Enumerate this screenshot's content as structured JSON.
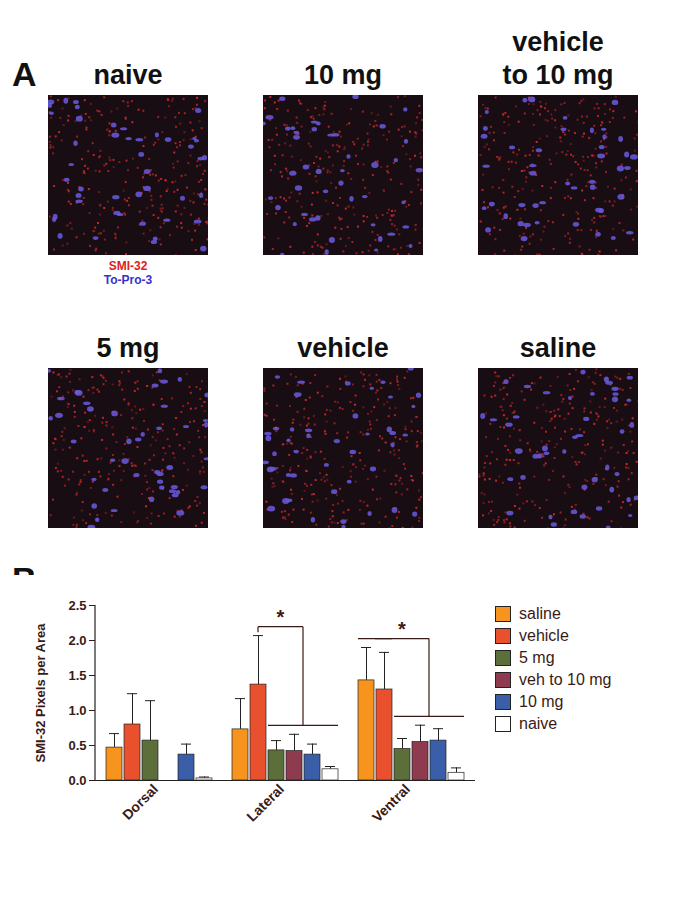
{
  "panel_labels": [
    "A",
    "B"
  ],
  "images": {
    "titles": [
      "naive",
      "10 mg",
      "vehicle to 10 mg",
      "5 mg",
      "vehicle",
      "saline"
    ],
    "stain_labels": [
      {
        "text": "SMI-32",
        "color": "#e02020"
      },
      {
        "text": "To-Pro-3",
        "color": "#3333cc"
      }
    ]
  },
  "chart_data": {
    "type": "bar",
    "y_label": "SMI-32 Pixels per Area",
    "categories": [
      "Dorsal",
      "Lateral",
      "Ventral"
    ],
    "series": [
      {
        "name": "saline",
        "color": "#f7941d",
        "values": [
          0.47,
          0.73,
          1.43
        ],
        "errors": [
          0.2,
          0.44,
          0.47
        ]
      },
      {
        "name": "vehicle",
        "color": "#e8502e",
        "values": [
          0.8,
          1.37,
          1.3
        ],
        "errors": [
          0.44,
          0.7,
          0.53
        ]
      },
      {
        "name": "5 mg",
        "color": "#5c6e3a",
        "values": [
          0.57,
          0.43,
          0.45
        ],
        "errors": [
          0.57,
          0.14,
          0.15
        ]
      },
      {
        "name": "veh to 10 mg",
        "color": "#8e3a4f",
        "values": [
          null,
          0.42,
          0.55
        ],
        "errors": [
          null,
          0.24,
          0.24
        ]
      },
      {
        "name": "10 mg",
        "color": "#3a5fa8",
        "values": [
          0.37,
          0.37,
          0.57
        ],
        "errors": [
          0.15,
          0.15,
          0.17
        ]
      },
      {
        "name": "naive",
        "color": "#ffffff",
        "values": [
          0.03,
          0.16,
          0.11
        ],
        "errors": [
          0.02,
          0.04,
          0.07
        ]
      }
    ],
    "ylim": [
      0,
      2.5
    ],
    "yticks": [
      {
        "value": 0,
        "label": "0.0"
      },
      0.5,
      {
        "value": 1,
        "label": "1.0"
      },
      1.5,
      {
        "value": 2,
        "label": "2.0"
      },
      2.5
    ],
    "legend": "right",
    "annotations": [
      {
        "text": "*",
        "group": "Lateral",
        "left": [
          "vehicle"
        ],
        "right": [
          "5 mg",
          "veh to 10 mg",
          "10 mg",
          "naive"
        ]
      },
      {
        "text": "*",
        "group": "Ventral",
        "left": [
          "saline",
          "vehicle"
        ],
        "right": [
          "5 mg",
          "veh to 10 mg",
          "10 mg",
          "naive"
        ]
      }
    ]
  }
}
